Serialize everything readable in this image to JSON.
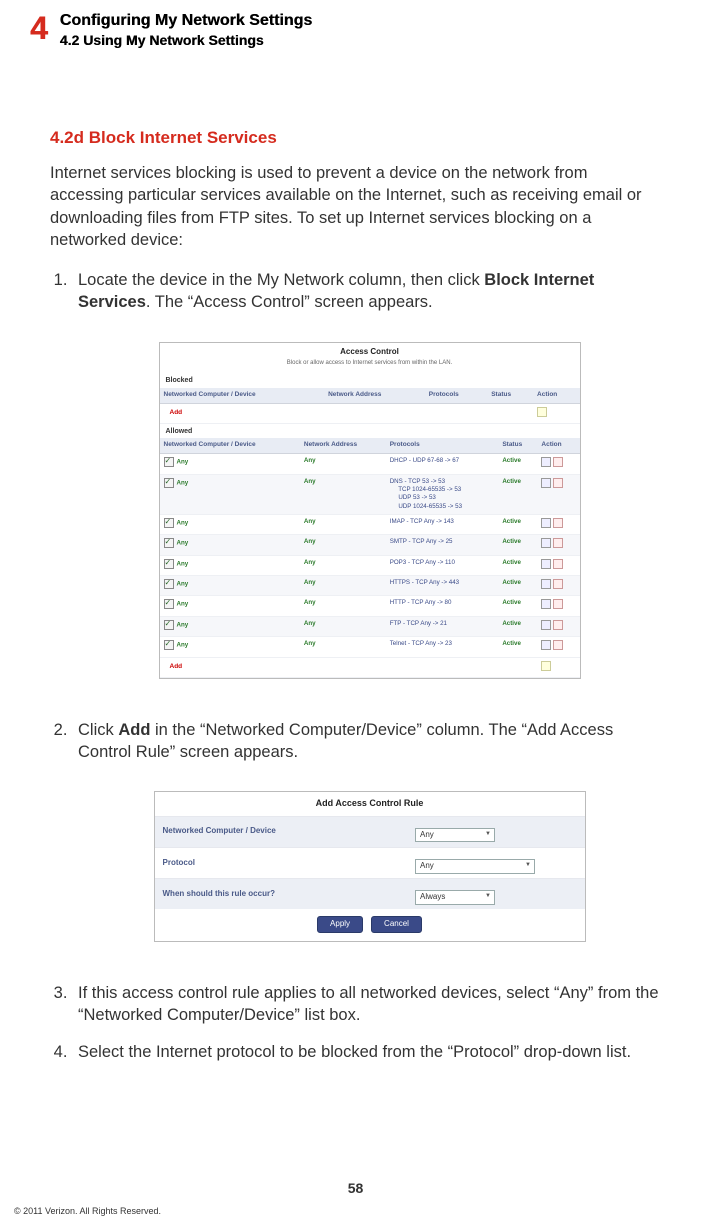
{
  "header": {
    "chapter_number": "4",
    "chapter_title": "Configuring My Network Settings",
    "section_number_title": "4.2  Using My Network Settings"
  },
  "section": {
    "heading": "4.2d  Block Internet Services",
    "intro": "Internet services blocking is used to prevent a device on the network from accessing particular services available on the Internet, such as receiving email or downloading files from FTP sites. To set up Internet services blocking on a networked device:"
  },
  "steps": {
    "s1_pre": "Locate the device in the My Network column, then click ",
    "s1_bold": "Block Internet Services",
    "s1_post": ". The “Access Control” screen appears.",
    "s2_pre": "Click ",
    "s2_bold": "Add",
    "s2_post": " in the “Networked Computer/Device” column. The “Add Access Control Rule” screen appears.",
    "s3": "If this access control rule applies to all networked devices, select “Any” from the “Networked Computer/Device” list box.",
    "s4": "Select the Internet protocol to be blocked from the “Protocol” drop-down list."
  },
  "access_control": {
    "title": "Access Control",
    "subtitle": "Block or allow access to Internet services from within the LAN.",
    "blocked_label": "Blocked",
    "allowed_label": "Allowed",
    "cols": {
      "device": "Networked Computer / Device",
      "addr": "Network Address",
      "proto": "Protocols",
      "status": "Status",
      "action": "Action"
    },
    "add_label": "Add",
    "any_label": "Any",
    "active_label": "Active",
    "rows": [
      {
        "proto": "DHCP - UDP 67-68 -> 67"
      },
      {
        "proto": "DNS - TCP 53 -> 53\n     TCP 1024-65535 -> 53\n     UDP 53 -> 53\n     UDP 1024-65535 -> 53"
      },
      {
        "proto": "IMAP - TCP Any -> 143"
      },
      {
        "proto": "SMTP - TCP Any -> 25"
      },
      {
        "proto": "POP3 - TCP Any -> 110"
      },
      {
        "proto": "HTTPS - TCP Any -> 443"
      },
      {
        "proto": "HTTP - TCP Any -> 80"
      },
      {
        "proto": "FTP - TCP Any -> 21"
      },
      {
        "proto": "Telnet - TCP Any -> 23"
      }
    ]
  },
  "add_rule": {
    "title": "Add Access Control Rule",
    "row_device": "Networked Computer / Device",
    "row_protocol": "Protocol",
    "row_when": "When should this rule occur?",
    "val_any": "Any",
    "val_always": "Always",
    "btn_apply": "Apply",
    "btn_cancel": "Cancel"
  },
  "footer": {
    "page_num": "58",
    "copyright": "© 2011 Verizon. All Rights Reserved."
  }
}
